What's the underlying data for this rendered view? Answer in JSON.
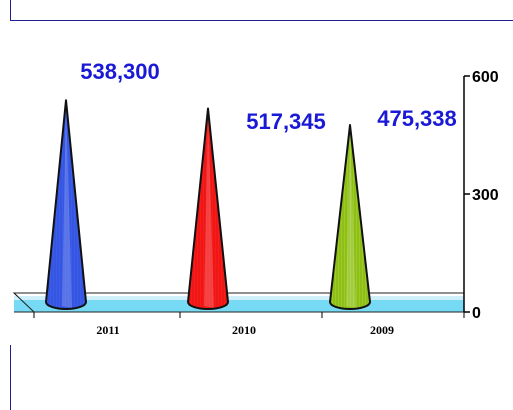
{
  "chart_data": {
    "type": "bar",
    "shape": "cone",
    "categories": [
      "2011",
      "2010",
      "2009"
    ],
    "values": [
      538300,
      517345,
      475338
    ],
    "value_labels": [
      "538,300",
      "517,345",
      "475,338"
    ],
    "ylim": [
      0,
      600000
    ],
    "y_ticks": [
      0,
      300000,
      600000
    ],
    "y_tick_labels": [
      "0",
      "300",
      "600"
    ],
    "y_axis_side": "right",
    "title": "",
    "xlabel": "",
    "ylabel": "",
    "legend": "none",
    "grid": false,
    "colors": [
      "#3a5cf0",
      "#ff1a1a",
      "#9acd1e"
    ],
    "label_color": "#1a1ad6",
    "floor_color": "#5fd3f2"
  }
}
